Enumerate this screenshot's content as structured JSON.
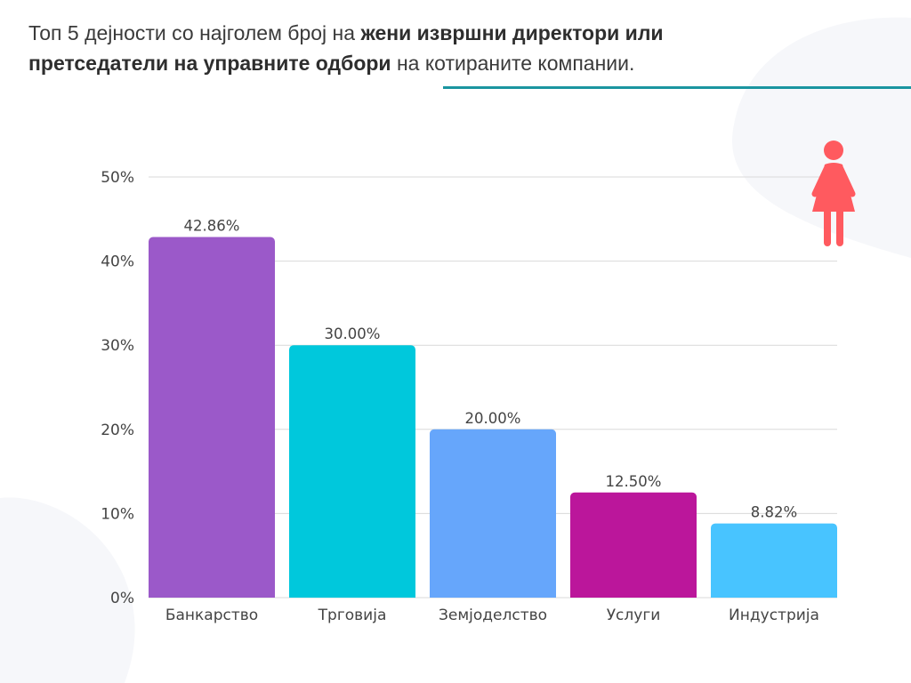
{
  "title": {
    "part1": "Топ 5 дејности со најголем број на ",
    "bold1": "жени извршни директори или претседатели на управните одбори",
    "part2": " на котираните компании."
  },
  "colors": {
    "title_rule": "#1a95a0",
    "blob": "#f6f7fa",
    "grid": "#d9d9d9",
    "icon": "#ff5a5f"
  },
  "icon": {
    "name": "woman-icon"
  },
  "chart_data": {
    "type": "bar",
    "categories": [
      "Банкарство",
      "Трговија",
      "Земјоделство",
      "Услуги",
      "Индустрија"
    ],
    "values": [
      42.86,
      30.0,
      20.0,
      12.5,
      8.82
    ],
    "value_labels": [
      "42.86%",
      "30.00%",
      "20.00%",
      "12.50%",
      "8.82%"
    ],
    "colors": [
      "#9b59c9",
      "#00c8dc",
      "#66a6fb",
      "#bb169b",
      "#48c4ff"
    ],
    "yticks": [
      "0%",
      "10%",
      "20%",
      "30%",
      "40%",
      "50%"
    ],
    "ylim": [
      0,
      50
    ],
    "xlabel": "",
    "ylabel": "",
    "grid": true,
    "legend": "none"
  }
}
